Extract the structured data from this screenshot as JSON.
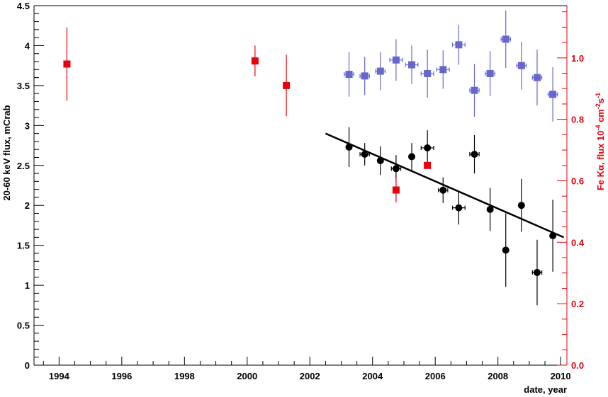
{
  "chart_data": {
    "type": "scatter",
    "xlabel": "date, year",
    "ylabel": "20-60 keV flux, mCrab",
    "ylabel_right_prefix": "Fe K",
    "ylabel_right_symbol": "α",
    "ylabel_right_flux": ", flux 10",
    "ylabel_right_exp1": "-4",
    "ylabel_right_units": " cm",
    "ylabel_right_exp2": "-2",
    "ylabel_right_s": "s",
    "ylabel_right_exp3": "-1",
    "xlim": [
      1993.2,
      2010.2
    ],
    "ylim": [
      0,
      4.5
    ],
    "ylim_right": [
      0,
      1.17
    ],
    "x_ticks": [
      1994,
      1996,
      1998,
      2000,
      2002,
      2004,
      2006,
      2008,
      2010
    ],
    "y_ticks": [
      "0",
      "0.5",
      "1",
      "1.5",
      "2",
      "2.5",
      "3",
      "3.5",
      "4",
      "4.5"
    ],
    "y_right_ticks": [
      "0.0",
      "0.2",
      "0.4",
      "0.6",
      "0.8",
      "1.0"
    ],
    "colors": {
      "hard_flux": "#000000",
      "fe_flux": "#e8000b",
      "blue_series": "#6666cc",
      "right_axis": "#e8000b"
    },
    "series": [
      {
        "marker": "circle",
        "color": "#000000",
        "points": [
          {
            "x": 2003.25,
            "y": 2.73,
            "xerr": 0.0,
            "yerr": 0.25
          },
          {
            "x": 2003.75,
            "y": 2.64,
            "xerr": 0.15,
            "yerr": 0.14
          },
          {
            "x": 2004.25,
            "y": 2.56,
            "xerr": 0.0,
            "yerr": 0.18
          },
          {
            "x": 2004.75,
            "y": 2.46,
            "xerr": 0.15,
            "yerr": 0.17
          },
          {
            "x": 2005.25,
            "y": 2.61,
            "xerr": 0.0,
            "yerr": 0.17
          },
          {
            "x": 2005.75,
            "y": 2.72,
            "xerr": 0.2,
            "yerr": 0.22
          },
          {
            "x": 2006.25,
            "y": 2.19,
            "xerr": 0.15,
            "yerr": 0.16
          },
          {
            "x": 2006.75,
            "y": 1.97,
            "xerr": 0.2,
            "yerr": 0.21
          },
          {
            "x": 2007.25,
            "y": 2.64,
            "xerr": 0.15,
            "yerr": 0.24
          },
          {
            "x": 2007.75,
            "y": 1.95,
            "xerr": 0.0,
            "yerr": 0.27
          },
          {
            "x": 2008.25,
            "y": 1.44,
            "xerr": 0.0,
            "yerr": 0.46
          },
          {
            "x": 2008.75,
            "y": 2.0,
            "xerr": 0.0,
            "yerr": 0.33
          },
          {
            "x": 2009.25,
            "y": 1.16,
            "xerr": 0.15,
            "yerr": 0.41
          },
          {
            "x": 2009.75,
            "y": 1.62,
            "xerr": 0.0,
            "yerr": 0.45
          }
        ]
      },
      {
        "marker": "square",
        "color": "#e8000b",
        "axis": "right",
        "points": [
          {
            "x": 1994.25,
            "y": 0.98,
            "xerr": 0.0,
            "yerr": 0.12
          },
          {
            "x": 2000.25,
            "y": 0.99,
            "xerr": 0.0,
            "yerr": 0.05
          },
          {
            "x": 2001.25,
            "y": 0.91,
            "xerr": 0.0,
            "yerr": 0.1
          },
          {
            "x": 2004.75,
            "y": 0.57,
            "xerr": 0.0,
            "yerr": 0.04
          },
          {
            "x": 2005.75,
            "y": 0.65,
            "xerr": 0.0,
            "yerr": 0.0
          }
        ]
      },
      {
        "marker": "square",
        "color": "#6666cc",
        "points": [
          {
            "x": 2003.25,
            "y": 3.64,
            "xerr": 0.15,
            "yerr": 0.28
          },
          {
            "x": 2003.75,
            "y": 3.62,
            "xerr": 0.15,
            "yerr": 0.24
          },
          {
            "x": 2004.25,
            "y": 3.68,
            "xerr": 0.15,
            "yerr": 0.24
          },
          {
            "x": 2004.75,
            "y": 3.82,
            "xerr": 0.2,
            "yerr": 0.26
          },
          {
            "x": 2005.25,
            "y": 3.76,
            "xerr": 0.2,
            "yerr": 0.24
          },
          {
            "x": 2005.75,
            "y": 3.65,
            "xerr": 0.2,
            "yerr": 0.3
          },
          {
            "x": 2006.25,
            "y": 3.7,
            "xerr": 0.2,
            "yerr": 0.24
          },
          {
            "x": 2006.75,
            "y": 4.01,
            "xerr": 0.2,
            "yerr": 0.25
          },
          {
            "x": 2007.25,
            "y": 3.44,
            "xerr": 0.15,
            "yerr": 0.33
          },
          {
            "x": 2007.75,
            "y": 3.65,
            "xerr": 0.15,
            "yerr": 0.28
          },
          {
            "x": 2008.25,
            "y": 4.08,
            "xerr": 0.15,
            "yerr": 0.36
          },
          {
            "x": 2008.75,
            "y": 3.75,
            "xerr": 0.15,
            "yerr": 0.3
          },
          {
            "x": 2009.25,
            "y": 3.6,
            "xerr": 0.15,
            "yerr": 0.35
          },
          {
            "x": 2009.75,
            "y": 3.39,
            "xerr": 0.15,
            "yerr": 0.34
          }
        ]
      }
    ],
    "trend_line": {
      "x": [
        2002.5,
        2010.1
      ],
      "y": [
        2.9,
        1.6
      ],
      "color": "#000000"
    }
  }
}
